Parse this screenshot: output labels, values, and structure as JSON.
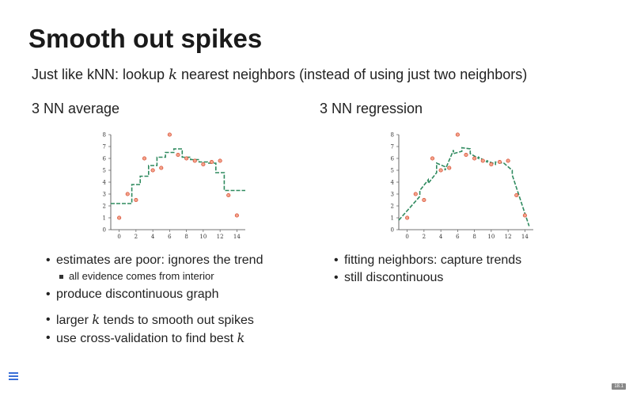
{
  "slide": {
    "title": "Smooth out spikes",
    "subtitle": {
      "before": "Just like kNN: lookup ",
      "math": "k",
      "after": " nearest neighbors (instead of using just two neighbors)"
    },
    "page_number": "18.1"
  },
  "left": {
    "heading": "3 NN average",
    "bullets": [
      {
        "text": "estimates are poor: ignores the trend"
      },
      {
        "text": "all evidence comes from interior",
        "sub": true
      },
      {
        "text": "produce discontinuous graph"
      },
      {
        "before": "larger ",
        "math": "k",
        "after": " tends to smooth out spikes"
      },
      {
        "before": "use cross-validation to find best ",
        "math": "k",
        "after": ""
      }
    ]
  },
  "right": {
    "heading": "3 NN regression",
    "bullets": [
      {
        "text": "fitting neighbors: capture trends"
      },
      {
        "text": "still discontinuous"
      }
    ]
  },
  "colors": {
    "point_fill": "#f4a28a",
    "point_stroke": "#d2442a",
    "fit_line": "#2f8a5f",
    "menu_icon": "#3a6fd8"
  },
  "chart_data": [
    {
      "type": "scatter",
      "title": "",
      "xlabel": "",
      "ylabel": "",
      "xlim": [
        -1,
        15
      ],
      "ylim": [
        0,
        8
      ],
      "xticks": [
        0,
        2,
        4,
        6,
        8,
        10,
        12,
        14
      ],
      "yticks": [
        0,
        1,
        2,
        3,
        4,
        5,
        6,
        7,
        8
      ],
      "points": [
        [
          0,
          1.0
        ],
        [
          1,
          3.0
        ],
        [
          2,
          2.5
        ],
        [
          3,
          6.0
        ],
        [
          4,
          5.0
        ],
        [
          5,
          5.2
        ],
        [
          6,
          8.0
        ],
        [
          7,
          6.3
        ],
        [
          8,
          6.0
        ],
        [
          9,
          5.8
        ],
        [
          10,
          5.5
        ],
        [
          11,
          5.7
        ],
        [
          12,
          5.8
        ],
        [
          13,
          2.9
        ],
        [
          14,
          1.2
        ]
      ],
      "fit": {
        "name": "3 NN average",
        "style": "dashed step",
        "x": [
          -1,
          1.5,
          1.5,
          2.5,
          2.5,
          3.5,
          3.5,
          4.5,
          4.5,
          5.5,
          5.5,
          6.5,
          6.5,
          7.5,
          7.5,
          8.5,
          8.5,
          9.5,
          9.5,
          10.5,
          10.5,
          11.5,
          11.5,
          12.5,
          12.5,
          15
        ],
        "y": [
          2.2,
          2.2,
          3.8,
          3.8,
          4.5,
          4.5,
          5.4,
          5.4,
          6.1,
          6.1,
          6.5,
          6.5,
          6.8,
          6.8,
          6.1,
          6.1,
          5.9,
          5.9,
          5.7,
          5.7,
          5.6,
          5.6,
          4.8,
          4.8,
          3.3,
          3.3
        ]
      }
    },
    {
      "type": "scatter",
      "title": "",
      "xlabel": "",
      "ylabel": "",
      "xlim": [
        -1,
        15
      ],
      "ylim": [
        0,
        8
      ],
      "xticks": [
        0,
        2,
        4,
        6,
        8,
        10,
        12,
        14
      ],
      "yticks": [
        0,
        1,
        2,
        3,
        4,
        5,
        6,
        7,
        8
      ],
      "points": [
        [
          0,
          1.0
        ],
        [
          1,
          3.0
        ],
        [
          2,
          2.5
        ],
        [
          3,
          6.0
        ],
        [
          4,
          5.0
        ],
        [
          5,
          5.2
        ],
        [
          6,
          8.0
        ],
        [
          7,
          6.3
        ],
        [
          8,
          6.0
        ],
        [
          9,
          5.8
        ],
        [
          10,
          5.5
        ],
        [
          11,
          5.7
        ],
        [
          12,
          5.8
        ],
        [
          13,
          2.9
        ],
        [
          14,
          1.2
        ]
      ],
      "fit": {
        "name": "3 NN regression",
        "style": "dashed piecewise linear",
        "x": [
          -1,
          1.5,
          1.5,
          2.5,
          2.5,
          3.5,
          3.5,
          4.5,
          4.5,
          5.5,
          5.5,
          6.5,
          6.5,
          7.5,
          7.5,
          8.5,
          8.5,
          9.5,
          9.5,
          10.5,
          10.5,
          11.5,
          11.5,
          12.5,
          12.5,
          14.5
        ],
        "y": [
          0.8,
          2.8,
          3.3,
          4.2,
          3.9,
          4.8,
          5.6,
          5.3,
          5.0,
          6.7,
          6.4,
          6.6,
          6.9,
          6.8,
          6.4,
          6.0,
          6.1,
          5.7,
          5.8,
          5.5,
          5.7,
          5.6,
          5.6,
          5.0,
          4.6,
          0.3
        ]
      }
    }
  ]
}
